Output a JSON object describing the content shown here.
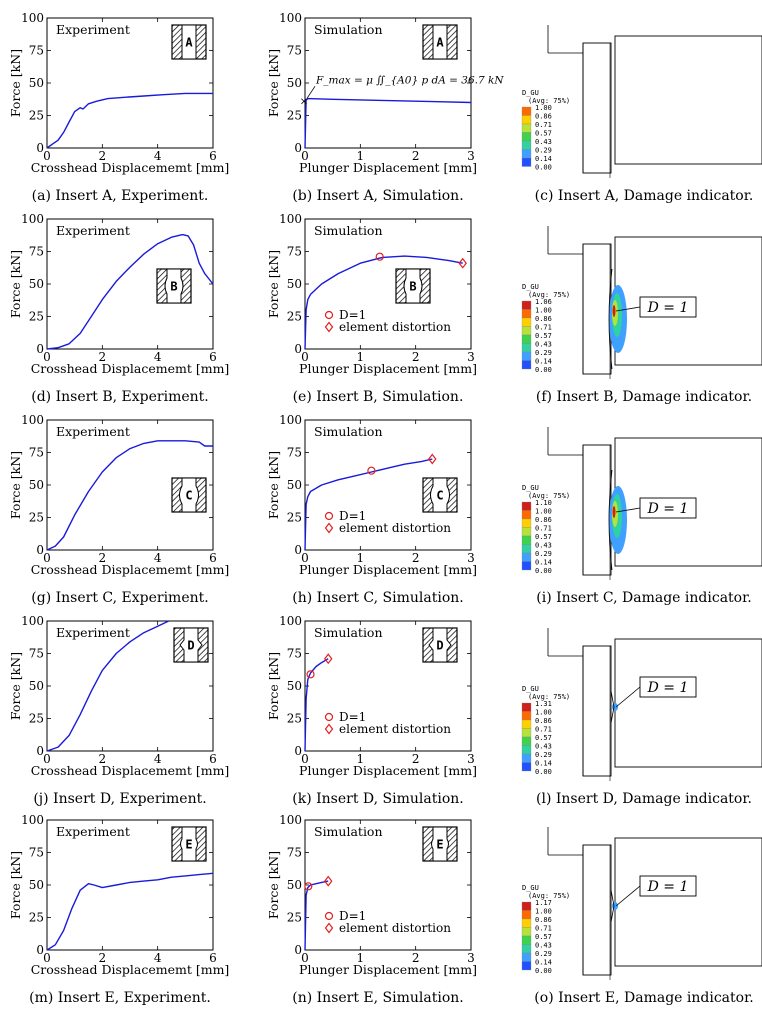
{
  "chart_data": [
    {
      "id": "a",
      "type": "line",
      "panel": "experiment",
      "caption": "(a) Insert A, Experiment.",
      "label": "Experiment",
      "insert": "A",
      "xlabel": "Crosshead Displacememt [mm]",
      "ylabel": "Force [kN]",
      "xlim": [
        0,
        6
      ],
      "ylim": [
        0,
        100
      ],
      "xticks": [
        "0",
        "2",
        "4",
        "6"
      ],
      "yticks": [
        "0",
        "25",
        "50",
        "75",
        "100"
      ],
      "series": [
        {
          "color": "#1a1adc",
          "x": [
            0,
            0.2,
            0.4,
            0.6,
            0.8,
            1.0,
            1.2,
            1.3,
            1.5,
            1.8,
            2.2,
            2.8,
            3.5,
            4.2,
            5.0,
            5.5,
            6.0
          ],
          "y": [
            0,
            3,
            6,
            12,
            20,
            28,
            31,
            30,
            34,
            36,
            38,
            39,
            40,
            41,
            42,
            42,
            42
          ]
        }
      ]
    },
    {
      "id": "b",
      "type": "line",
      "panel": "simulation",
      "caption": "(b) Insert A, Simulation.",
      "label": "Simulation",
      "insert": "A",
      "xlabel": "Plunger Displacement [mm]",
      "ylabel": "Force [kN]",
      "xlim": [
        0,
        3
      ],
      "ylim": [
        0,
        100
      ],
      "xticks": [
        "0",
        "1",
        "2",
        "3"
      ],
      "yticks": [
        "0",
        "25",
        "50",
        "75",
        "100"
      ],
      "annotation": "F_max = μ ∬_{A0} p dA = 36.7 kN",
      "series": [
        {
          "color": "#1a1adc",
          "x": [
            0,
            0.02,
            0.05,
            0.5,
            1,
            1.5,
            2,
            2.5,
            3
          ],
          "y": [
            0,
            36.7,
            38,
            37.5,
            37,
            36.5,
            36,
            35.5,
            35
          ]
        }
      ]
    },
    {
      "id": "d",
      "type": "line",
      "panel": "experiment",
      "caption": "(d) Insert B, Experiment.",
      "label": "Experiment",
      "insert": "B",
      "xlabel": "Crosshead Displacememt [mm]",
      "ylabel": "Force [kN]",
      "xlim": [
        0,
        6
      ],
      "ylim": [
        0,
        100
      ],
      "xticks": [
        "0",
        "2",
        "4",
        "6"
      ],
      "yticks": [
        "0",
        "25",
        "50",
        "75",
        "100"
      ],
      "series": [
        {
          "color": "#1a1adc",
          "x": [
            0,
            0.4,
            0.8,
            1.2,
            1.6,
            2.0,
            2.5,
            3.0,
            3.5,
            4.0,
            4.5,
            4.9,
            5.1,
            5.3,
            5.5,
            5.7,
            6.0
          ],
          "y": [
            0,
            1,
            4,
            12,
            25,
            38,
            52,
            63,
            73,
            81,
            86,
            88,
            87,
            80,
            66,
            58,
            50
          ]
        }
      ]
    },
    {
      "id": "e",
      "type": "line",
      "panel": "simulation",
      "caption": "(e) Insert B, Simulation.",
      "label": "Simulation",
      "insert": "B",
      "xlabel": "Plunger Displacement [mm]",
      "ylabel": "Force [kN]",
      "xlim": [
        0,
        3
      ],
      "ylim": [
        0,
        100
      ],
      "xticks": [
        "0",
        "1",
        "2",
        "3"
      ],
      "yticks": [
        "0",
        "25",
        "50",
        "75",
        "100"
      ],
      "series": [
        {
          "color": "#1a1adc",
          "x": [
            0,
            0.02,
            0.05,
            0.1,
            0.3,
            0.6,
            1.0,
            1.4,
            1.8,
            2.2,
            2.6,
            2.85
          ],
          "y": [
            0,
            30,
            38,
            42,
            50,
            58,
            66,
            70.5,
            71.5,
            70.5,
            68,
            66
          ]
        }
      ],
      "markers": [
        {
          "name": "D=1",
          "symbol": "circle",
          "x": 1.35,
          "y": 71
        },
        {
          "name": "element distortion",
          "symbol": "diamond",
          "x": 2.85,
          "y": 66
        }
      ],
      "legend": [
        "D=1",
        "element distortion"
      ]
    },
    {
      "id": "g",
      "type": "line",
      "panel": "experiment",
      "caption": "(g) Insert C, Experiment.",
      "label": "Experiment",
      "insert": "C",
      "xlabel": "Crosshead Displacememt [mm]",
      "ylabel": "Force [kN]",
      "xlim": [
        0,
        6
      ],
      "ylim": [
        0,
        100
      ],
      "xticks": [
        "0",
        "2",
        "4",
        "6"
      ],
      "yticks": [
        "0",
        "25",
        "50",
        "75",
        "100"
      ],
      "series": [
        {
          "color": "#1a1adc",
          "x": [
            0,
            0.3,
            0.6,
            1.0,
            1.5,
            2.0,
            2.5,
            3.0,
            3.5,
            4.0,
            4.5,
            5.0,
            5.5,
            5.7,
            6.0
          ],
          "y": [
            0,
            3,
            10,
            27,
            45,
            60,
            71,
            78,
            82,
            84,
            84,
            84,
            83,
            80,
            80
          ]
        }
      ]
    },
    {
      "id": "h",
      "type": "line",
      "panel": "simulation",
      "caption": "(h) Insert C, Simulation.",
      "label": "Simulation",
      "insert": "C",
      "xlabel": "Plunger Displacement [mm]",
      "ylabel": "Force [kN]",
      "xlim": [
        0,
        3
      ],
      "ylim": [
        0,
        100
      ],
      "xticks": [
        "0",
        "1",
        "2",
        "3"
      ],
      "yticks": [
        "0",
        "25",
        "50",
        "75",
        "100"
      ],
      "series": [
        {
          "color": "#1a1adc",
          "x": [
            0,
            0.02,
            0.05,
            0.1,
            0.3,
            0.6,
            0.9,
            1.2,
            1.5,
            1.8,
            2.1,
            2.3
          ],
          "y": [
            0,
            35,
            41,
            45,
            50,
            54,
            57,
            60,
            63,
            66,
            68,
            70
          ]
        }
      ],
      "markers": [
        {
          "name": "D=1",
          "symbol": "circle",
          "x": 1.2,
          "y": 61
        },
        {
          "name": "element distortion",
          "symbol": "diamond",
          "x": 2.3,
          "y": 70
        }
      ],
      "legend": [
        "D=1",
        "element distortion"
      ]
    },
    {
      "id": "j",
      "type": "line",
      "panel": "experiment",
      "caption": "(j) Insert D, Experiment.",
      "label": "Experiment",
      "insert": "D",
      "xlabel": "Crosshead Displacememt [mm]",
      "ylabel": "Force [kN]",
      "xlim": [
        0,
        6
      ],
      "ylim": [
        0,
        100
      ],
      "xticks": [
        "0",
        "2",
        "4",
        "6"
      ],
      "yticks": [
        "0",
        "25",
        "50",
        "75",
        "100"
      ],
      "series": [
        {
          "color": "#1a1adc",
          "x": [
            0,
            0.4,
            0.8,
            1.2,
            1.6,
            2.0,
            2.5,
            3.0,
            3.5,
            4.0,
            4.4
          ],
          "y": [
            0,
            3,
            12,
            28,
            46,
            62,
            75,
            84,
            91,
            96,
            100
          ]
        }
      ]
    },
    {
      "id": "k",
      "type": "line",
      "panel": "simulation",
      "caption": "(k) Insert D, Simulation.",
      "label": "Simulation",
      "insert": "D",
      "xlabel": "Plunger Displacement [mm]",
      "ylabel": "Force [kN]",
      "xlim": [
        0,
        3
      ],
      "ylim": [
        0,
        100
      ],
      "xticks": [
        "0",
        "1",
        "2",
        "3"
      ],
      "yticks": [
        "0",
        "25",
        "50",
        "75",
        "100"
      ],
      "series": [
        {
          "color": "#1a1adc",
          "x": [
            0,
            0.02,
            0.05,
            0.1,
            0.2,
            0.3,
            0.42
          ],
          "y": [
            0,
            40,
            55,
            60,
            65,
            68,
            71
          ]
        }
      ],
      "markers": [
        {
          "name": "D=1",
          "symbol": "circle",
          "x": 0.1,
          "y": 59
        },
        {
          "name": "element distortion",
          "symbol": "diamond",
          "x": 0.42,
          "y": 71
        }
      ],
      "legend": [
        "D=1",
        "element distortion"
      ]
    },
    {
      "id": "m",
      "type": "line",
      "panel": "experiment",
      "caption": "(m) Insert E, Experiment.",
      "label": "Experiment",
      "insert": "E",
      "xlabel": "Crosshead Displacememt [mm]",
      "ylabel": "Force [kN]",
      "xlim": [
        0,
        6
      ],
      "ylim": [
        0,
        100
      ],
      "xticks": [
        "0",
        "2",
        "4",
        "6"
      ],
      "yticks": [
        "0",
        "25",
        "50",
        "75",
        "100"
      ],
      "series": [
        {
          "color": "#1a1adc",
          "x": [
            0,
            0.3,
            0.6,
            0.9,
            1.2,
            1.5,
            1.7,
            2.0,
            2.5,
            3.0,
            3.5,
            4.0,
            4.5,
            5.0,
            5.5,
            6.0
          ],
          "y": [
            0,
            4,
            15,
            32,
            46,
            51,
            50,
            48,
            50,
            52,
            53,
            54,
            56,
            57,
            58,
            59
          ]
        }
      ]
    },
    {
      "id": "n",
      "type": "line",
      "panel": "simulation",
      "caption": "(n) Insert E, Simulation.",
      "label": "Simulation",
      "insert": "E",
      "xlabel": "Plunger Displacement [mm]",
      "ylabel": "Force [kN]",
      "xlim": [
        0,
        3
      ],
      "ylim": [
        0,
        100
      ],
      "xticks": [
        "0",
        "1",
        "2",
        "3"
      ],
      "yticks": [
        "0",
        "25",
        "50",
        "75",
        "100"
      ],
      "series": [
        {
          "color": "#1a1adc",
          "x": [
            0,
            0.02,
            0.05,
            0.1,
            0.2,
            0.3,
            0.42
          ],
          "y": [
            0,
            42,
            48,
            50,
            51,
            52,
            53
          ]
        }
      ],
      "markers": [
        {
          "name": "D=1",
          "symbol": "circle",
          "x": 0.06,
          "y": 49
        },
        {
          "name": "element distortion",
          "symbol": "diamond",
          "x": 0.42,
          "y": 53
        }
      ],
      "legend": [
        "D=1",
        "element distortion"
      ]
    }
  ],
  "damage_panels": [
    {
      "id": "c",
      "caption": "(c) Insert A, Damage indicator.",
      "legend_title": "D_GU",
      "legend_subtitle": "(Avg: 75%)",
      "legend_values": [
        "1.00",
        "0.86",
        "0.71",
        "0.57",
        "0.43",
        "0.29",
        "0.14",
        "0.00"
      ],
      "callout": "",
      "damage_level": 0
    },
    {
      "id": "f",
      "caption": "(f) Insert B, Damage indicator.",
      "legend_title": "D_GU",
      "legend_subtitle": "(Avg: 75%)",
      "legend_values": [
        "1.06",
        "1.00",
        "0.86",
        "0.71",
        "0.57",
        "0.43",
        "0.29",
        "0.14",
        "0.00"
      ],
      "callout": "D = 1",
      "damage_level": 3
    },
    {
      "id": "i",
      "caption": "(i) Insert C, Damage indicator.",
      "legend_title": "D_GU",
      "legend_subtitle": "(Avg: 75%)",
      "legend_values": [
        "1.10",
        "1.00",
        "0.86",
        "0.71",
        "0.57",
        "0.43",
        "0.29",
        "0.14",
        "0.00"
      ],
      "callout": "D = 1",
      "damage_level": 3
    },
    {
      "id": "l",
      "caption": "(l) Insert D, Damage indicator.",
      "legend_title": "D_GU",
      "legend_subtitle": "(Avg: 75%)",
      "legend_values": [
        "1.31",
        "1.00",
        "0.86",
        "0.71",
        "0.57",
        "0.43",
        "0.29",
        "0.14",
        "0.00"
      ],
      "callout": "D = 1",
      "damage_level": 1
    },
    {
      "id": "o",
      "caption": "(o) Insert E, Damage indicator.",
      "legend_title": "D_GU",
      "legend_subtitle": "(Avg: 75%)",
      "legend_values": [
        "1.17",
        "1.00",
        "0.86",
        "0.71",
        "0.57",
        "0.43",
        "0.29",
        "0.14",
        "0.00"
      ],
      "callout": "D = 1",
      "damage_level": 1
    }
  ],
  "colors": {
    "curve": "#1a1adc",
    "marker": "#e02020",
    "legend_scale": [
      "#d0201a",
      "#ff6a00",
      "#ffd000",
      "#b7e23a",
      "#3fd24c",
      "#2fd2a0",
      "#3fa0ff",
      "#2050ff",
      "#ffffff"
    ]
  }
}
